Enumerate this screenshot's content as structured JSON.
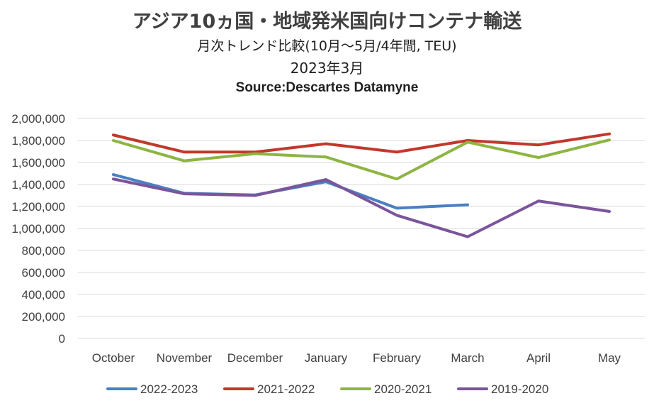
{
  "titles": {
    "main": "アジア10ヵ国・地域発米国向けコンテナ輸送",
    "sub": "月次トレンド比較(10月〜5月/4年間, TEU)",
    "date": "2023年3月",
    "source": "Source:Descartes Datamyne"
  },
  "chart_data": {
    "type": "line",
    "categories": [
      "October",
      "November",
      "December",
      "January",
      "February",
      "March",
      "April",
      "May"
    ],
    "ylim": [
      0,
      2000000
    ],
    "yticks": [
      "0",
      "200,000",
      "400,000",
      "600,000",
      "800,000",
      "1,000,000",
      "1,200,000",
      "1,400,000",
      "1,600,000",
      "1,800,000",
      "2,000,000"
    ],
    "grid": true,
    "legend_position": "bottom",
    "series": [
      {
        "name": "2022-2023",
        "color": "#4a7fc1",
        "values": [
          1490000,
          1320000,
          1305000,
          1425000,
          1185000,
          1215000,
          null,
          null
        ]
      },
      {
        "name": "2021-2022",
        "color": "#c0392b",
        "values": [
          1850000,
          1695000,
          1695000,
          1770000,
          1695000,
          1800000,
          1760000,
          1860000
        ]
      },
      {
        "name": "2020-2021",
        "color": "#8db542",
        "values": [
          1800000,
          1615000,
          1680000,
          1650000,
          1450000,
          1785000,
          1645000,
          1805000
        ]
      },
      {
        "name": "2019-2020",
        "color": "#7b559b",
        "values": [
          1450000,
          1315000,
          1300000,
          1445000,
          1120000,
          925000,
          1250000,
          1155000
        ]
      }
    ]
  }
}
